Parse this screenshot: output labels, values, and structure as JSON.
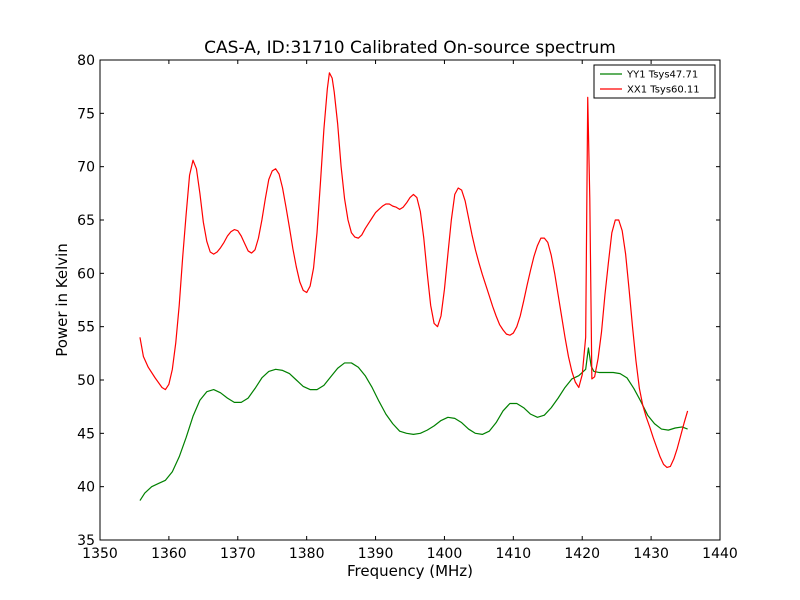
{
  "chart_data": {
    "type": "line",
    "title": "CAS-A, ID:31710 Calibrated On-source spectrum",
    "xlabel": "Frequency (MHz)",
    "ylabel": "Power in Kelvin",
    "xlim": [
      1350,
      1440
    ],
    "ylim": [
      35,
      80
    ],
    "xticks": [
      1350,
      1360,
      1370,
      1380,
      1390,
      1400,
      1410,
      1420,
      1430,
      1440
    ],
    "yticks": [
      35,
      40,
      45,
      50,
      55,
      60,
      65,
      70,
      75,
      80
    ],
    "grid": false,
    "legend_position": "top-right",
    "series": [
      {
        "name": "YY1 Tsys47.71",
        "color": "#008000",
        "points": [
          [
            1355.8,
            38.7
          ],
          [
            1356.5,
            39.4
          ],
          [
            1357.5,
            40.0
          ],
          [
            1358.5,
            40.3
          ],
          [
            1359.5,
            40.6
          ],
          [
            1360.5,
            41.4
          ],
          [
            1361.5,
            42.8
          ],
          [
            1362.5,
            44.6
          ],
          [
            1363.5,
            46.6
          ],
          [
            1364.5,
            48.1
          ],
          [
            1365.5,
            48.9
          ],
          [
            1366.5,
            49.1
          ],
          [
            1367.5,
            48.8
          ],
          [
            1368.5,
            48.3
          ],
          [
            1369.5,
            47.9
          ],
          [
            1370.5,
            47.9
          ],
          [
            1371.5,
            48.3
          ],
          [
            1372.5,
            49.2
          ],
          [
            1373.5,
            50.2
          ],
          [
            1374.5,
            50.8
          ],
          [
            1375.5,
            51.0
          ],
          [
            1376.5,
            50.9
          ],
          [
            1377.5,
            50.6
          ],
          [
            1378.5,
            50.0
          ],
          [
            1379.5,
            49.4
          ],
          [
            1380.5,
            49.1
          ],
          [
            1381.5,
            49.1
          ],
          [
            1382.5,
            49.5
          ],
          [
            1383.5,
            50.3
          ],
          [
            1384.5,
            51.1
          ],
          [
            1385.5,
            51.6
          ],
          [
            1386.5,
            51.6
          ],
          [
            1387.5,
            51.2
          ],
          [
            1388.5,
            50.4
          ],
          [
            1389.5,
            49.3
          ],
          [
            1390.5,
            48.0
          ],
          [
            1391.5,
            46.8
          ],
          [
            1392.5,
            45.9
          ],
          [
            1393.5,
            45.2
          ],
          [
            1394.5,
            45.0
          ],
          [
            1395.5,
            44.9
          ],
          [
            1396.5,
            45.0
          ],
          [
            1397.5,
            45.3
          ],
          [
            1398.5,
            45.7
          ],
          [
            1399.5,
            46.2
          ],
          [
            1400.5,
            46.5
          ],
          [
            1401.5,
            46.4
          ],
          [
            1402.5,
            46.0
          ],
          [
            1403.5,
            45.4
          ],
          [
            1404.5,
            45.0
          ],
          [
            1405.5,
            44.9
          ],
          [
            1406.5,
            45.2
          ],
          [
            1407.5,
            46.0
          ],
          [
            1408.5,
            47.1
          ],
          [
            1409.5,
            47.8
          ],
          [
            1410.5,
            47.8
          ],
          [
            1411.5,
            47.4
          ],
          [
            1412.5,
            46.8
          ],
          [
            1413.5,
            46.5
          ],
          [
            1414.5,
            46.7
          ],
          [
            1415.5,
            47.4
          ],
          [
            1416.5,
            48.3
          ],
          [
            1417.5,
            49.3
          ],
          [
            1418.5,
            50.1
          ],
          [
            1419.5,
            50.4
          ],
          [
            1420.5,
            51.0
          ],
          [
            1420.9,
            53.0
          ],
          [
            1421.3,
            51.3
          ],
          [
            1421.7,
            50.8
          ],
          [
            1422.5,
            50.7
          ],
          [
            1423.5,
            50.7
          ],
          [
            1424.5,
            50.7
          ],
          [
            1425.5,
            50.6
          ],
          [
            1426.5,
            50.2
          ],
          [
            1427.5,
            49.2
          ],
          [
            1428.5,
            48.0
          ],
          [
            1429.5,
            46.7
          ],
          [
            1430.5,
            45.9
          ],
          [
            1431.5,
            45.4
          ],
          [
            1432.5,
            45.3
          ],
          [
            1433.5,
            45.5
          ],
          [
            1434.5,
            45.6
          ],
          [
            1435.3,
            45.4
          ]
        ]
      },
      {
        "name": "XX1 Tsys60.11",
        "color": "#ff0000",
        "points": [
          [
            1355.8,
            54.0
          ],
          [
            1356.3,
            52.2
          ],
          [
            1357.0,
            51.2
          ],
          [
            1358.0,
            50.2
          ],
          [
            1359.0,
            49.3
          ],
          [
            1359.5,
            49.1
          ],
          [
            1360.0,
            49.6
          ],
          [
            1360.5,
            51.0
          ],
          [
            1361.0,
            53.5
          ],
          [
            1361.5,
            57.0
          ],
          [
            1362.0,
            61.5
          ],
          [
            1362.5,
            65.5
          ],
          [
            1363.0,
            69.2
          ],
          [
            1363.5,
            70.6
          ],
          [
            1364.0,
            69.8
          ],
          [
            1364.5,
            67.5
          ],
          [
            1365.0,
            64.8
          ],
          [
            1365.5,
            63.0
          ],
          [
            1366.0,
            62.0
          ],
          [
            1366.5,
            61.8
          ],
          [
            1367.0,
            62.0
          ],
          [
            1367.5,
            62.4
          ],
          [
            1368.0,
            62.9
          ],
          [
            1368.5,
            63.5
          ],
          [
            1369.0,
            63.9
          ],
          [
            1369.5,
            64.1
          ],
          [
            1370.0,
            64.0
          ],
          [
            1370.5,
            63.5
          ],
          [
            1371.0,
            62.8
          ],
          [
            1371.5,
            62.1
          ],
          [
            1372.0,
            61.9
          ],
          [
            1372.5,
            62.2
          ],
          [
            1373.0,
            63.3
          ],
          [
            1373.5,
            65.0
          ],
          [
            1374.0,
            67.0
          ],
          [
            1374.5,
            68.8
          ],
          [
            1375.0,
            69.6
          ],
          [
            1375.5,
            69.8
          ],
          [
            1376.0,
            69.3
          ],
          [
            1376.5,
            68.0
          ],
          [
            1377.0,
            66.2
          ],
          [
            1377.5,
            64.3
          ],
          [
            1378.0,
            62.3
          ],
          [
            1378.5,
            60.6
          ],
          [
            1379.0,
            59.2
          ],
          [
            1379.5,
            58.4
          ],
          [
            1380.0,
            58.2
          ],
          [
            1380.5,
            58.8
          ],
          [
            1381.0,
            60.5
          ],
          [
            1381.5,
            63.8
          ],
          [
            1382.0,
            68.5
          ],
          [
            1382.5,
            73.5
          ],
          [
            1383.0,
            77.3
          ],
          [
            1383.3,
            78.8
          ],
          [
            1383.7,
            78.3
          ],
          [
            1384.0,
            77.0
          ],
          [
            1384.5,
            74.0
          ],
          [
            1385.0,
            70.0
          ],
          [
            1385.5,
            67.0
          ],
          [
            1386.0,
            65.0
          ],
          [
            1386.5,
            63.8
          ],
          [
            1387.0,
            63.4
          ],
          [
            1387.5,
            63.3
          ],
          [
            1388.0,
            63.6
          ],
          [
            1388.5,
            64.2
          ],
          [
            1389.0,
            64.7
          ],
          [
            1389.5,
            65.2
          ],
          [
            1390.0,
            65.7
          ],
          [
            1390.5,
            66.0
          ],
          [
            1391.0,
            66.3
          ],
          [
            1391.5,
            66.5
          ],
          [
            1392.0,
            66.5
          ],
          [
            1392.5,
            66.3
          ],
          [
            1393.0,
            66.2
          ],
          [
            1393.5,
            66.0
          ],
          [
            1394.0,
            66.2
          ],
          [
            1394.5,
            66.6
          ],
          [
            1395.0,
            67.1
          ],
          [
            1395.5,
            67.4
          ],
          [
            1396.0,
            67.1
          ],
          [
            1396.5,
            65.8
          ],
          [
            1397.0,
            63.3
          ],
          [
            1397.5,
            60.0
          ],
          [
            1398.0,
            57.0
          ],
          [
            1398.5,
            55.3
          ],
          [
            1399.0,
            55.0
          ],
          [
            1399.5,
            56.0
          ],
          [
            1400.0,
            58.5
          ],
          [
            1400.5,
            61.8
          ],
          [
            1401.0,
            65.0
          ],
          [
            1401.5,
            67.4
          ],
          [
            1402.0,
            68.0
          ],
          [
            1402.5,
            67.8
          ],
          [
            1403.0,
            66.8
          ],
          [
            1403.5,
            65.2
          ],
          [
            1404.0,
            63.6
          ],
          [
            1404.5,
            62.2
          ],
          [
            1405.0,
            61.0
          ],
          [
            1405.5,
            59.9
          ],
          [
            1406.0,
            58.9
          ],
          [
            1406.5,
            57.9
          ],
          [
            1407.0,
            56.9
          ],
          [
            1407.5,
            56.0
          ],
          [
            1408.0,
            55.2
          ],
          [
            1408.5,
            54.7
          ],
          [
            1409.0,
            54.3
          ],
          [
            1409.5,
            54.2
          ],
          [
            1410.0,
            54.4
          ],
          [
            1410.5,
            55.0
          ],
          [
            1411.0,
            56.0
          ],
          [
            1411.5,
            57.4
          ],
          [
            1412.0,
            58.9
          ],
          [
            1412.5,
            60.3
          ],
          [
            1413.0,
            61.6
          ],
          [
            1413.5,
            62.6
          ],
          [
            1414.0,
            63.3
          ],
          [
            1414.5,
            63.3
          ],
          [
            1415.0,
            62.9
          ],
          [
            1415.5,
            61.7
          ],
          [
            1416.0,
            60.0
          ],
          [
            1416.5,
            58.0
          ],
          [
            1417.0,
            56.0
          ],
          [
            1417.5,
            54.0
          ],
          [
            1418.0,
            52.2
          ],
          [
            1418.5,
            50.8
          ],
          [
            1419.0,
            49.8
          ],
          [
            1419.5,
            49.3
          ],
          [
            1420.0,
            50.5
          ],
          [
            1420.5,
            54.0
          ],
          [
            1420.8,
            76.5
          ],
          [
            1421.1,
            67.0
          ],
          [
            1421.4,
            50.1
          ],
          [
            1421.8,
            50.3
          ],
          [
            1422.3,
            52.0
          ],
          [
            1422.8,
            54.5
          ],
          [
            1423.3,
            58.0
          ],
          [
            1423.8,
            61.0
          ],
          [
            1424.3,
            63.8
          ],
          [
            1424.8,
            65.0
          ],
          [
            1425.3,
            65.0
          ],
          [
            1425.8,
            64.0
          ],
          [
            1426.3,
            61.8
          ],
          [
            1426.8,
            58.5
          ],
          [
            1427.3,
            55.0
          ],
          [
            1427.8,
            51.8
          ],
          [
            1428.3,
            49.2
          ],
          [
            1428.8,
            47.6
          ],
          [
            1429.3,
            46.5
          ],
          [
            1429.8,
            45.6
          ],
          [
            1430.3,
            44.6
          ],
          [
            1430.8,
            43.7
          ],
          [
            1431.3,
            42.8
          ],
          [
            1431.8,
            42.1
          ],
          [
            1432.3,
            41.8
          ],
          [
            1432.8,
            41.9
          ],
          [
            1433.3,
            42.6
          ],
          [
            1433.8,
            43.6
          ],
          [
            1434.3,
            44.8
          ],
          [
            1434.8,
            46.0
          ],
          [
            1435.3,
            47.1
          ]
        ]
      }
    ]
  }
}
